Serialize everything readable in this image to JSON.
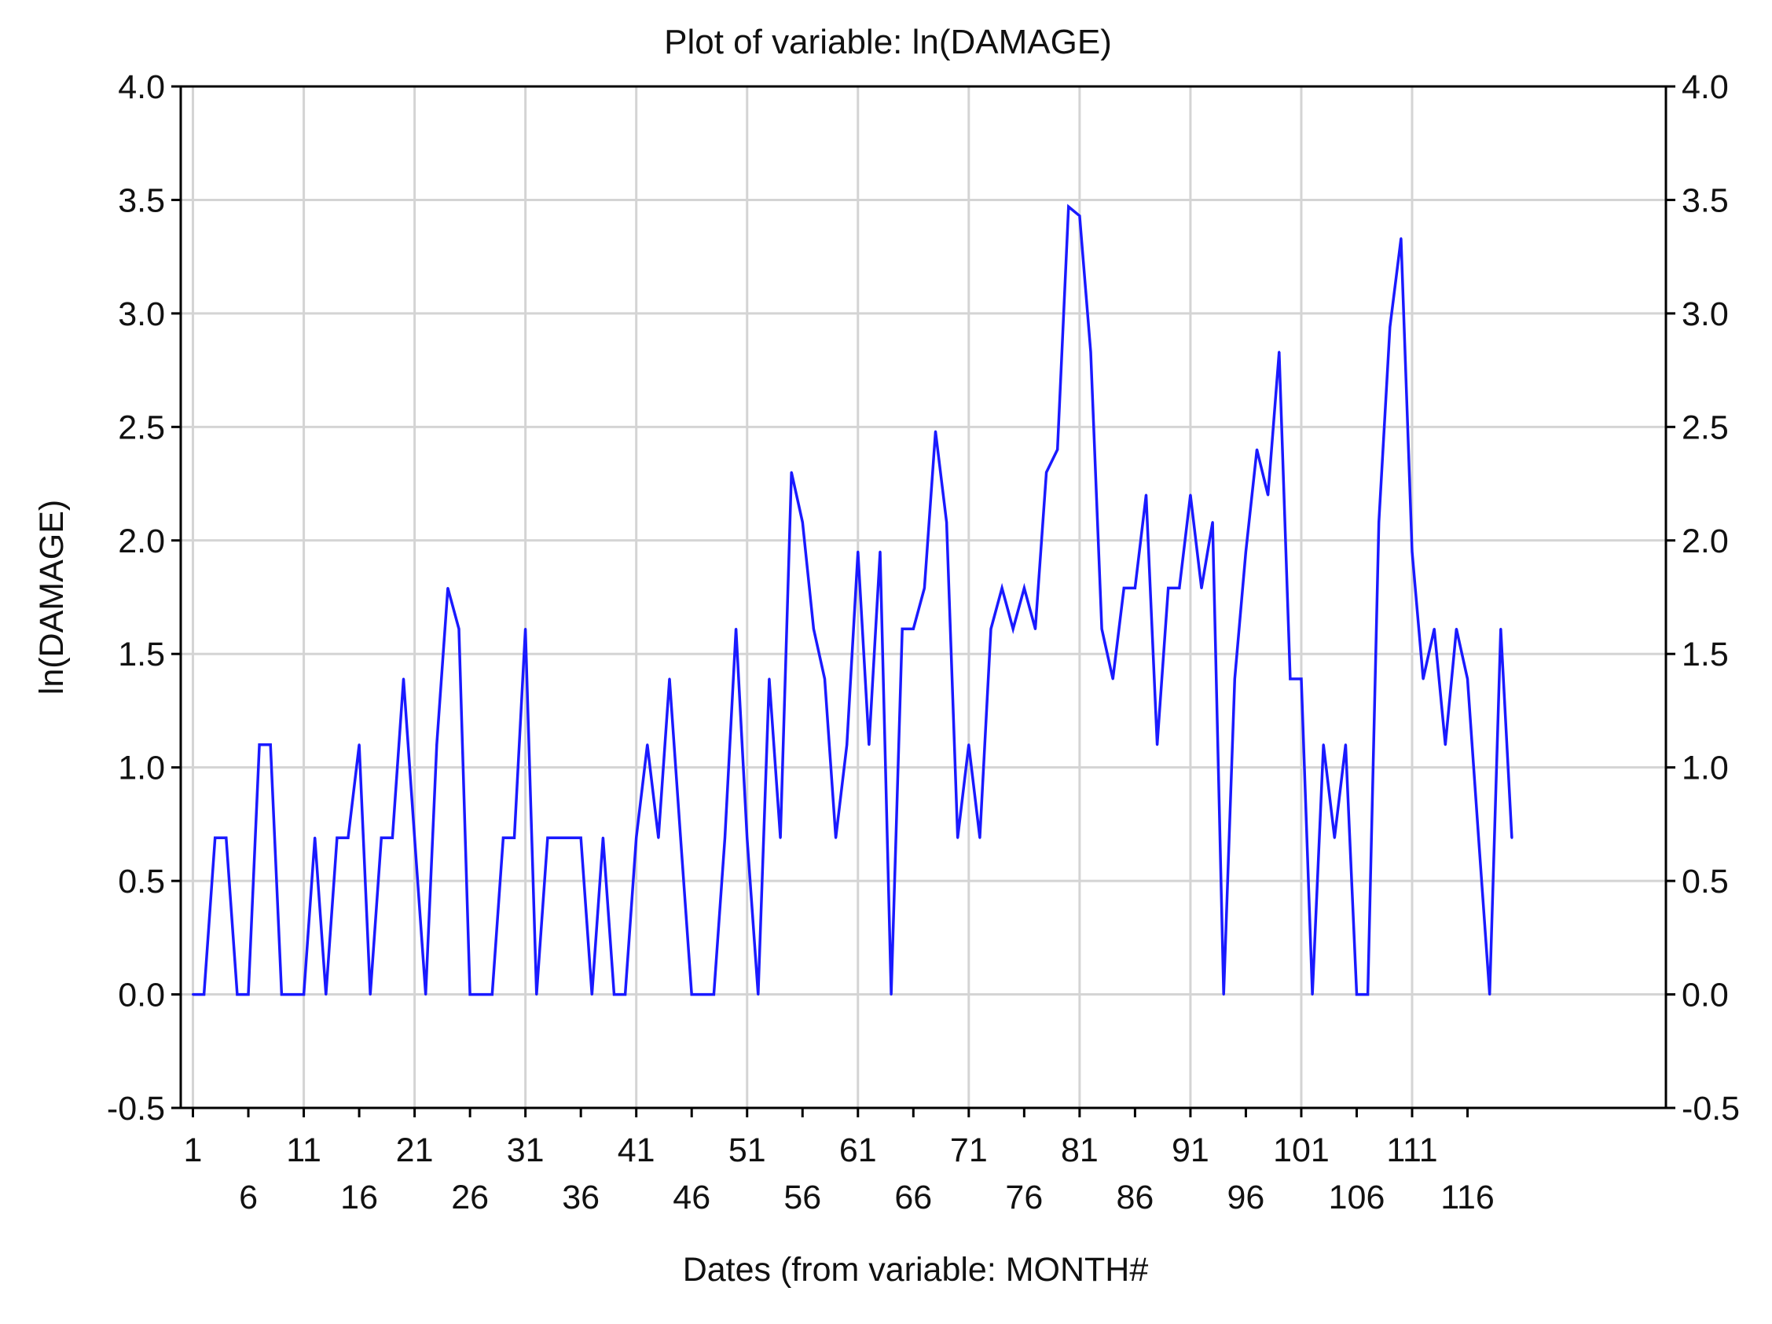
{
  "chart_data": {
    "type": "line",
    "title": "Plot of variable: ln(DAMAGE)",
    "xlabel": "Dates (from variable: MONTH#",
    "ylabel": "ln(DAMAGE)",
    "ylim": [
      -0.5,
      4.0
    ],
    "yticks": [
      "-0.5",
      "0.0",
      "0.5",
      "1.0",
      "1.5",
      "2.0",
      "2.5",
      "3.0",
      "3.5",
      "4.0"
    ],
    "xlim": [
      -0.1,
      133.9
    ],
    "xticks_row1": [
      "1",
      "11",
      "21",
      "31",
      "41",
      "51",
      "61",
      "71",
      "81",
      "91",
      "101",
      "111"
    ],
    "xticks_row2": [
      "6",
      "16",
      "26",
      "36",
      "46",
      "56",
      "66",
      "76",
      "86",
      "96",
      "106",
      "116"
    ],
    "grid": true,
    "line_color": "#1a1aff",
    "series": [
      {
        "x": [
          1,
          2,
          3,
          4,
          5,
          6,
          7,
          8,
          9,
          10,
          11,
          12,
          13,
          14,
          15,
          16,
          17,
          18,
          19,
          20,
          21,
          22,
          23,
          24,
          25,
          26,
          27,
          28,
          29,
          30,
          31,
          32,
          33,
          34,
          35,
          36,
          37,
          38,
          39,
          40,
          41,
          42,
          43,
          44,
          45,
          46,
          47,
          48,
          49,
          50,
          51,
          52,
          53,
          54,
          55,
          56,
          57,
          58,
          59,
          60,
          61,
          62,
          63,
          64,
          65,
          66,
          67,
          68,
          69,
          70,
          71,
          72,
          73,
          74,
          75,
          76,
          77,
          78,
          79,
          80,
          81,
          82,
          83,
          84,
          85,
          86,
          87,
          88,
          89,
          90,
          91,
          92,
          93,
          94,
          95,
          96,
          97,
          98,
          99,
          100,
          101,
          102,
          103,
          104,
          105,
          106,
          107,
          108,
          109,
          110,
          111,
          112,
          113,
          114,
          115,
          116,
          117,
          118,
          119,
          120
        ],
        "values": [
          0,
          0,
          0.69,
          0.69,
          0,
          0,
          1.1,
          1.1,
          0,
          0,
          0,
          0.69,
          0,
          0.69,
          0.69,
          1.1,
          0,
          0.69,
          0.69,
          1.39,
          0.69,
          0,
          1.1,
          1.79,
          1.61,
          0,
          0,
          0,
          0.69,
          0.69,
          1.61,
          0,
          0.69,
          0.69,
          0.69,
          0.69,
          0,
          0.69,
          0,
          0,
          0.69,
          1.1,
          0.69,
          1.39,
          0.69,
          0,
          0,
          0,
          0.69,
          1.61,
          0.69,
          0,
          1.39,
          0.69,
          2.3,
          2.08,
          1.61,
          1.39,
          0.69,
          1.1,
          1.95,
          1.1,
          1.95,
          0,
          1.61,
          1.61,
          1.79,
          2.48,
          2.08,
          0.69,
          1.1,
          0.69,
          1.61,
          1.79,
          1.61,
          1.79,
          1.61,
          2.3,
          2.4,
          3.47,
          3.43,
          2.83,
          1.61,
          1.39,
          1.79,
          1.79,
          2.2,
          1.1,
          1.79,
          1.79,
          2.2,
          1.79,
          2.08,
          0,
          1.39,
          1.95,
          2.4,
          2.2,
          2.83,
          1.39,
          1.39,
          0,
          1.1,
          0.69,
          1.1,
          0,
          0,
          2.08,
          2.94,
          3.33,
          1.95,
          1.39,
          1.61,
          1.1,
          1.61,
          1.39,
          0.69,
          0,
          1.61,
          0.69
        ]
      }
    ]
  }
}
